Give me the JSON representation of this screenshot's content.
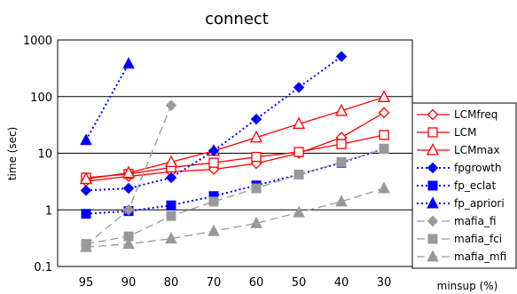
{
  "chart_data": {
    "type": "line",
    "title": "connect",
    "xlabel": "minsup (%)",
    "ylabel": "time (sec)",
    "yscale": "log",
    "ylim": [
      0.1,
      1000
    ],
    "grid": "horizontal",
    "legend_position": "right",
    "categories": [
      "95",
      "90",
      "80",
      "70",
      "60",
      "50",
      "40",
      "30"
    ],
    "yticks": [
      "0.1",
      "1",
      "10",
      "100",
      "1000"
    ],
    "series": [
      {
        "name": "LCMfreq",
        "color": "#ff0000",
        "dash": "solid",
        "marker": "diamond-open",
        "values": [
          3.2,
          3.9,
          4.7,
          5.2,
          6.6,
          10.0,
          19.0,
          52.0
        ]
      },
      {
        "name": "LCM",
        "color": "#ff0000",
        "dash": "solid",
        "marker": "square-open",
        "values": [
          3.7,
          4.3,
          5.6,
          6.8,
          8.6,
          10.5,
          14.5,
          21.0
        ]
      },
      {
        "name": "LCMmax",
        "color": "#ff0000",
        "dash": "solid",
        "marker": "triangle-open",
        "values": [
          3.5,
          4.5,
          7.0,
          11.0,
          19.0,
          33.0,
          56.0,
          98.0
        ]
      },
      {
        "name": "fpgrowth",
        "color": "#0000ff",
        "dash": "dotted",
        "marker": "diamond",
        "values": [
          2.2,
          2.4,
          3.7,
          11.0,
          40.0,
          145.0,
          510.0,
          null
        ]
      },
      {
        "name": "fp_eclat",
        "color": "#0000ff",
        "dash": "dotted",
        "marker": "square",
        "values": [
          0.85,
          0.95,
          1.2,
          1.75,
          2.7,
          4.2,
          6.8,
          12.0
        ]
      },
      {
        "name": "fp_apriori",
        "color": "#0000ff",
        "dash": "dotted",
        "marker": "triangle",
        "values": [
          17.0,
          380.0,
          null,
          null,
          null,
          null,
          null,
          null
        ]
      },
      {
        "name": "mafia_fi",
        "color": "#999999",
        "dash": "dashed",
        "marker": "diamond",
        "values": [
          0.24,
          1.0,
          70.0,
          null,
          null,
          null,
          null,
          null
        ]
      },
      {
        "name": "mafia_fci",
        "color": "#999999",
        "dash": "dashed",
        "marker": "square",
        "values": [
          0.25,
          0.34,
          0.78,
          1.4,
          2.4,
          4.2,
          7.0,
          12.0
        ]
      },
      {
        "name": "mafia_mfi",
        "color": "#999999",
        "dash": "dashed",
        "marker": "triangle",
        "values": [
          0.22,
          0.25,
          0.31,
          0.42,
          0.58,
          0.9,
          1.4,
          2.4
        ]
      }
    ]
  }
}
